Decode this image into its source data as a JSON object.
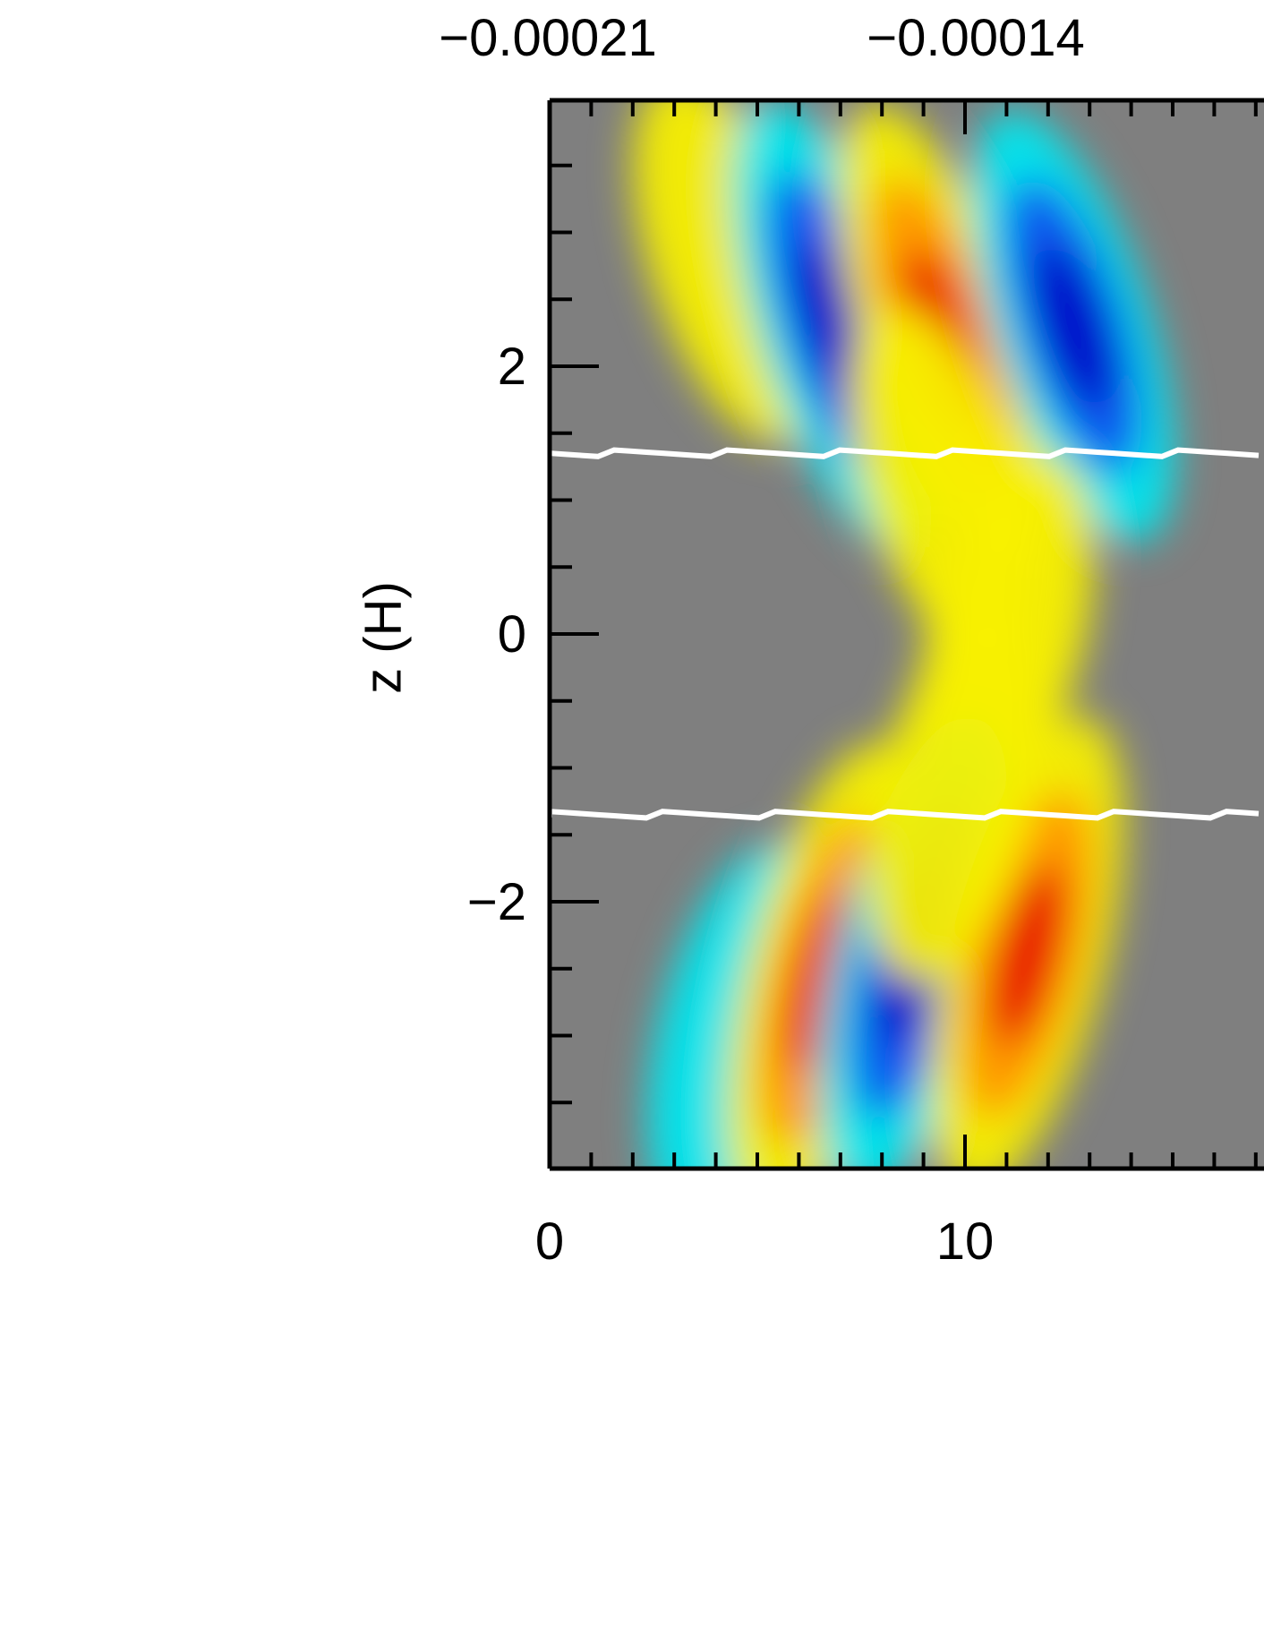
{
  "chart_data": {
    "type": "heatmap",
    "title": "",
    "xlabel": "",
    "ylabel": "z (H)",
    "xlim": [
      0,
      13
    ],
    "ylim": [
      -4,
      4
    ],
    "x_ticks": [
      {
        "value": 0,
        "label": "0"
      },
      {
        "value": 10,
        "label": "10"
      }
    ],
    "y_ticks": [
      {
        "value": 2,
        "label": "2"
      },
      {
        "value": 0,
        "label": "0"
      },
      {
        "value": -2,
        "label": "−2"
      }
    ],
    "colorbar": {
      "position": "top",
      "tick_labels": [
        {
          "value": -0.00021,
          "label": "−0.00021"
        },
        {
          "value": -0.00014,
          "label": "−0.00014"
        }
      ]
    },
    "colormap": [
      "#0000c8",
      "#0a5cf0",
      "#00e8f0",
      "#7f7f7f",
      "#f8f000",
      "#ff9a00",
      "#e80000"
    ],
    "background_color": "#7f7f7f",
    "boundary_lines": {
      "color": "#ffffff",
      "z_values": [
        1.35,
        -1.35
      ]
    },
    "features": [
      {
        "x": 4.3,
        "z": 2.8,
        "value": 0.45
      },
      {
        "x": 6.9,
        "z": 2.3,
        "value": -0.9
      },
      {
        "x": 9.5,
        "z": 2.2,
        "value": 1.0
      },
      {
        "x": 12.6,
        "z": 2.3,
        "value": -0.8
      },
      {
        "x": 9.5,
        "z": 1.1,
        "value": 0.4
      },
      {
        "x": 11.0,
        "z": 0.0,
        "value": 0.35
      },
      {
        "x": 4.5,
        "z": -3.0,
        "value": -0.5
      },
      {
        "x": 6.6,
        "z": -2.6,
        "value": 1.0
      },
      {
        "x": 8.8,
        "z": -2.4,
        "value": -1.0
      },
      {
        "x": 11.5,
        "z": -2.4,
        "value": 1.0
      },
      {
        "x": 9.8,
        "z": -1.2,
        "value": 0.45
      }
    ]
  }
}
